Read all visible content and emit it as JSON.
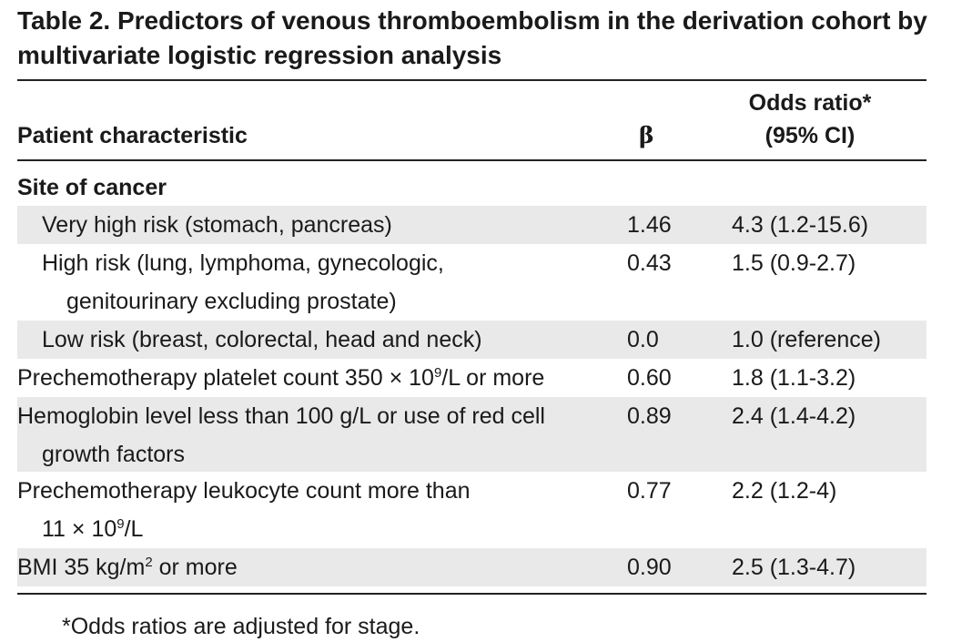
{
  "table": {
    "title": "Table 2. Predictors of venous thromboembolism in the derivation cohort by multivariate logistic regression analysis",
    "headers": {
      "characteristic": "Patient characteristic",
      "beta": "β",
      "or_line1": "Odds ratio*",
      "or_line2": "(95% CI)"
    },
    "section": "Site of cancer",
    "rows": [
      {
        "label1": "Very high risk (stomach, pancreas)",
        "beta": "1.46",
        "or": "4.3 (1.2-15.6)"
      },
      {
        "label1": "High risk (lung, lymphoma, gynecologic,",
        "label2": "genitourinary excluding prostate)",
        "beta": "0.43",
        "or": "1.5 (0.9-2.7)"
      },
      {
        "label1": "Low risk (breast, colorectal, head and neck)",
        "beta": "0.0",
        "or": "1.0 (reference)"
      },
      {
        "label1a": "Prechemotherapy platelet count 350 × 10",
        "label1sup": "9",
        "label1b": "/L or more",
        "beta": "0.60",
        "or": "1.8 (1.1-3.2)"
      },
      {
        "label1": "Hemoglobin level less than 100 g/L or use of red cell",
        "label2": "growth factors",
        "beta": "0.89",
        "or": "2.4 (1.4-4.2)"
      },
      {
        "label1": "Prechemotherapy leukocyte count more than",
        "label2a": "11 × 10",
        "label2sup": "9",
        "label2b": "/L",
        "beta": "0.77",
        "or": "2.2 (1.2-4)"
      },
      {
        "label1a": "BMI 35 kg/m",
        "label1sup": "2",
        "label1b": " or more",
        "beta": "0.90",
        "or": "2.5 (1.3-4.7)"
      }
    ],
    "footnote": "*Odds ratios are adjusted for stage."
  }
}
